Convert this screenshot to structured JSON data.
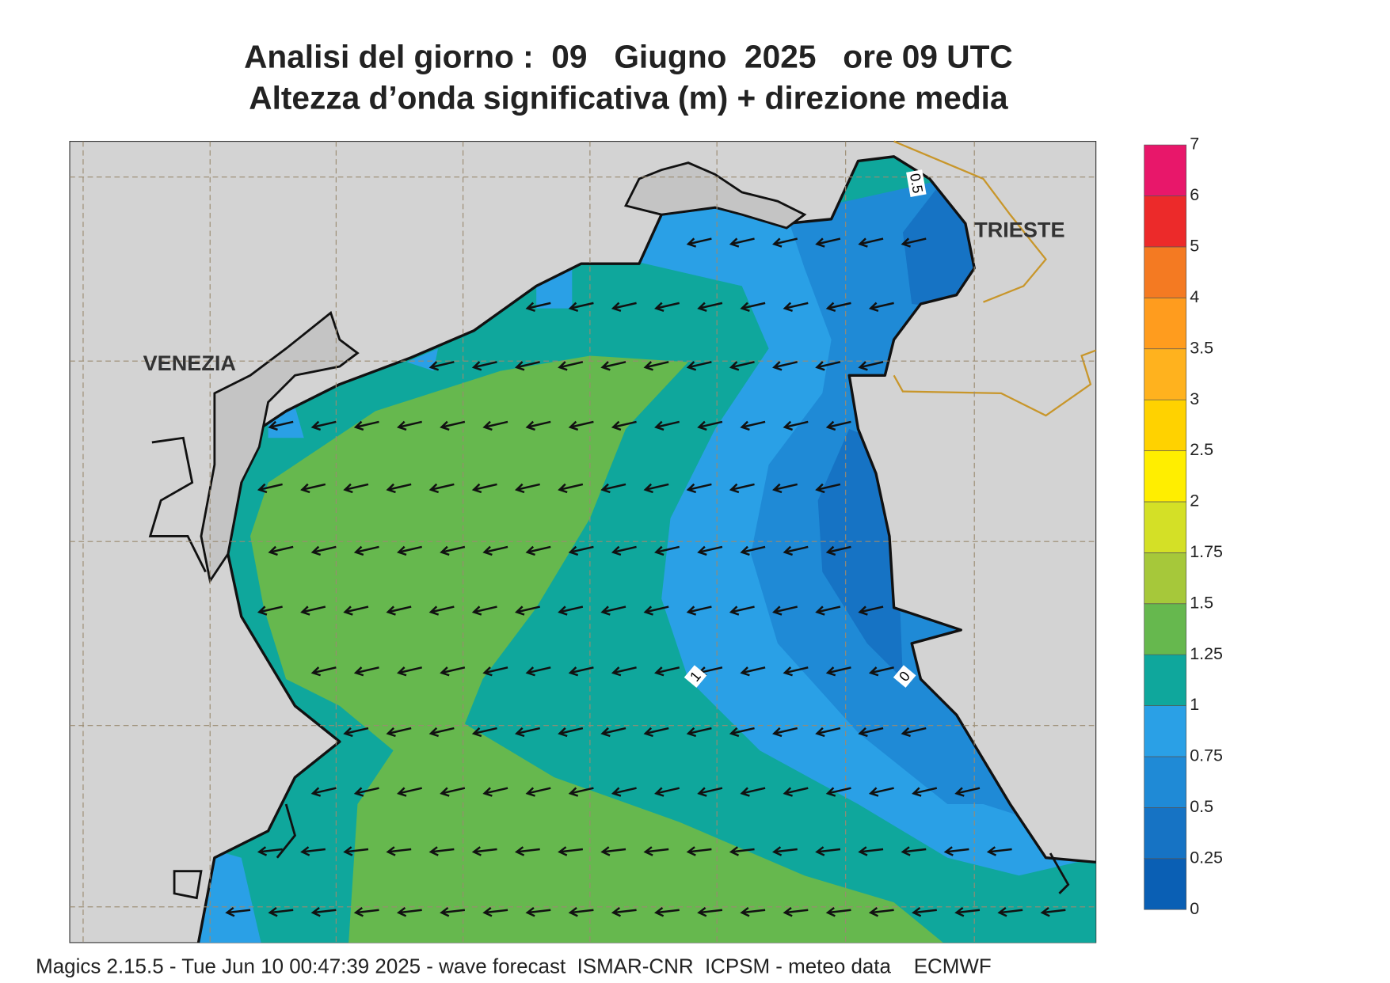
{
  "title": [
    "Analisi del giorno :  09   Giugno  2025   ore 09 UTC",
    "Altezza d’onda significativa (m) + direzione media"
  ],
  "places": [
    "VENEZIA",
    "TRIESTE"
  ],
  "contour_labels": [
    "0.5",
    "1",
    "0"
  ],
  "colorbar": {
    "levels": [
      0,
      0.25,
      0.5,
      0.75,
      1,
      1.25,
      1.5,
      1.75,
      2,
      2.5,
      3,
      3.5,
      4,
      5,
      6,
      7
    ],
    "colors": [
      "#0a5fb4",
      "#1673c4",
      "#1f8ad6",
      "#2aa0e6",
      "#0fa79c",
      "#66b84e",
      "#a6c83a",
      "#d4e026",
      "#ffee00",
      "#ffd200",
      "#ffb21e",
      "#ff9c1e",
      "#f47a22",
      "#ec2a2a",
      "#e8176a"
    ]
  },
  "footer": "Magics 2.15.5 - Tue Jun 10 00:47:39 2025 - wave forecast  ISMAR-CNR  ICPSM - meteo data    ECMWF"
}
